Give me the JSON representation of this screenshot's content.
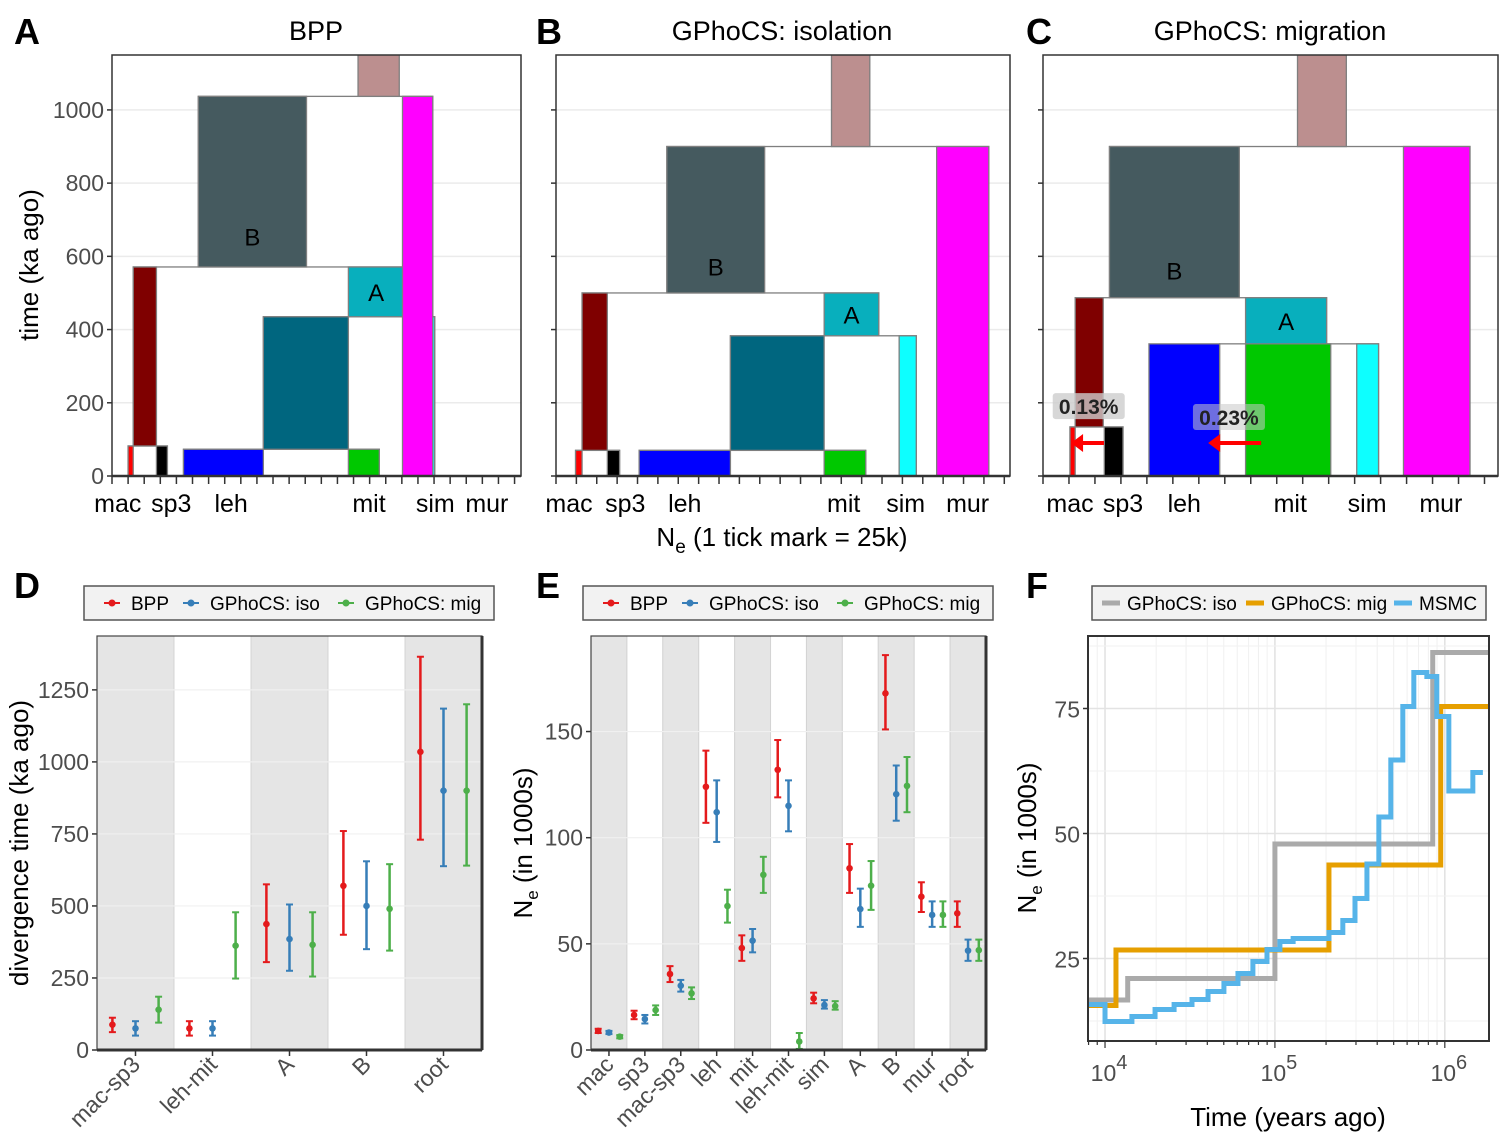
{
  "letters": [
    "A",
    "B",
    "C",
    "D",
    "E",
    "F"
  ],
  "shared_xlabel": {
    "main": "N",
    "sub": "e",
    "rest": " (1 tick mark = 25k)"
  },
  "chart_data": [
    {
      "type": "tree-rectangles",
      "title": "BPP",
      "ylabel": "time (ka ago)",
      "yticks": [
        0,
        200,
        400,
        600,
        800,
        1000
      ],
      "ylim": [
        0,
        1150
      ],
      "xlim": [
        0,
        635
      ],
      "xtick_step": 25,
      "tips": [
        {
          "label": "mac",
          "x": 9
        },
        {
          "label": "sp3",
          "x": 92
        },
        {
          "label": "leh",
          "x": 185
        },
        {
          "label": "mit",
          "x": 399
        },
        {
          "label": "sim",
          "x": 502
        },
        {
          "label": "mur",
          "x": 582
        }
      ],
      "boxes": [
        {
          "name": "B-descendants",
          "x": [
            134,
            498
          ],
          "t": [
            0,
            1037
          ],
          "color": "#FFFFFF"
        },
        {
          "name": "mac-sp3-A-space",
          "x": [
            33,
            453
          ],
          "t": [
            0,
            571
          ],
          "color": "#FFFFFF"
        },
        {
          "name": "A-descendants",
          "x": [
            235,
            501
          ],
          "t": [
            0,
            435
          ],
          "color": "#FFFFFF"
        },
        {
          "name": "leh-mit-tips",
          "x": [
            111,
            415
          ],
          "t": [
            0,
            73
          ],
          "color": "#FFFFFF"
        },
        {
          "name": "mac-sp3-tips",
          "x": [
            25,
            86
          ],
          "t": [
            0,
            82
          ],
          "color": "#FFFFFF"
        },
        {
          "name": "mac",
          "x": [
            25,
            33
          ],
          "t": [
            0,
            82
          ],
          "color": "#FF0000"
        },
        {
          "name": "sp3",
          "x": [
            69,
            86
          ],
          "t": [
            0,
            82
          ],
          "color": "#000000"
        },
        {
          "name": "mac-sp3",
          "x": [
            33,
            69
          ],
          "t": [
            82,
            571
          ],
          "color": "#7F0000"
        },
        {
          "name": "leh",
          "x": [
            111,
            235
          ],
          "t": [
            0,
            73
          ],
          "color": "#0000FF"
        },
        {
          "name": "mit",
          "x": [
            367,
            415
          ],
          "t": [
            0,
            73
          ],
          "color": "#00C800"
        },
        {
          "name": "leh-mit",
          "x": [
            235,
            367
          ],
          "t": [
            73,
            435
          ],
          "color": "#00667F"
        },
        {
          "name": "A",
          "x": [
            367,
            453
          ],
          "t": [
            435,
            571
          ],
          "color": "#08AFBD",
          "label": "A"
        },
        {
          "name": "sim",
          "x": [
            477,
            501
          ],
          "t": [
            0,
            435
          ],
          "color": "#0DFFFF"
        },
        {
          "name": "B",
          "x": [
            134,
            302
          ],
          "t": [
            571,
            1037
          ],
          "color": "#455A5F",
          "label": "B"
        },
        {
          "name": "mur",
          "x": [
            451,
            498
          ],
          "t": [
            0,
            1037
          ],
          "color": "#FF00FF"
        },
        {
          "name": "root",
          "x": [
            382,
            446
          ],
          "t": [
            1037,
            1300
          ],
          "color": "#BC8F8F"
        }
      ]
    },
    {
      "type": "tree-rectangles",
      "title": "GPhoCS: isolation",
      "yticks": [
        0,
        200,
        400,
        600,
        800,
        1000
      ],
      "ylim": [
        0,
        1150
      ],
      "xlim": [
        0,
        557
      ],
      "xtick_step": 25,
      "tips": [
        {
          "label": "mac",
          "x": 16
        },
        {
          "label": "sp3",
          "x": 85
        },
        {
          "label": "leh",
          "x": 158
        },
        {
          "label": "mit",
          "x": 353
        },
        {
          "label": "sim",
          "x": 429
        },
        {
          "label": "mur",
          "x": 505
        }
      ],
      "boxes": [
        {
          "name": "B-descendants",
          "x": [
            136,
            531
          ],
          "t": [
            0,
            900
          ],
          "color": "#FFFFFF"
        },
        {
          "name": "mac-sp3-A-space",
          "x": [
            32,
            396
          ],
          "t": [
            0,
            500
          ],
          "color": "#FFFFFF"
        },
        {
          "name": "A-descendants",
          "x": [
            214,
            442
          ],
          "t": [
            0,
            383
          ],
          "color": "#FFFFFF"
        },
        {
          "name": "leh-mit-tips",
          "x": [
            102,
            380
          ],
          "t": [
            0,
            70
          ],
          "color": "#FFFFFF"
        },
        {
          "name": "mac-sp3-tips",
          "x": [
            24,
            78
          ],
          "t": [
            0,
            70
          ],
          "color": "#FFFFFF"
        },
        {
          "name": "mac",
          "x": [
            24,
            32
          ],
          "t": [
            0,
            70
          ],
          "color": "#FF0000"
        },
        {
          "name": "sp3",
          "x": [
            63,
            78
          ],
          "t": [
            0,
            70
          ],
          "color": "#000000"
        },
        {
          "name": "mac-sp3",
          "x": [
            32,
            63
          ],
          "t": [
            70,
            500
          ],
          "color": "#7F0000"
        },
        {
          "name": "leh",
          "x": [
            102,
            214
          ],
          "t": [
            0,
            70
          ],
          "color": "#0000FF"
        },
        {
          "name": "mit",
          "x": [
            329,
            380
          ],
          "t": [
            0,
            70
          ],
          "color": "#00C800"
        },
        {
          "name": "leh-mit",
          "x": [
            214,
            329
          ],
          "t": [
            70,
            383
          ],
          "color": "#00667F"
        },
        {
          "name": "A",
          "x": [
            329,
            396
          ],
          "t": [
            383,
            500
          ],
          "color": "#08AFBD",
          "label": "A"
        },
        {
          "name": "sim",
          "x": [
            421,
            442
          ],
          "t": [
            0,
            383
          ],
          "color": "#0DFFFF"
        },
        {
          "name": "B",
          "x": [
            136,
            256
          ],
          "t": [
            500,
            900
          ],
          "color": "#455A5F",
          "label": "B"
        },
        {
          "name": "mur",
          "x": [
            467,
            531
          ],
          "t": [
            0,
            900
          ],
          "color": "#FF00FF"
        },
        {
          "name": "root",
          "x": [
            338,
            385
          ],
          "t": [
            900,
            1300
          ],
          "color": "#BC8F8F"
        }
      ]
    },
    {
      "type": "tree-rectangles",
      "title": "GPhoCS: migration",
      "yticks": [
        0,
        200,
        400,
        600,
        800,
        1000
      ],
      "ylim": [
        0,
        1150
      ],
      "xlim": [
        0,
        438
      ],
      "xtick_step": 25,
      "tips": [
        {
          "label": "mac",
          "x": 26
        },
        {
          "label": "sp3",
          "x": 77
        },
        {
          "label": "leh",
          "x": 136
        },
        {
          "label": "mit",
          "x": 238
        },
        {
          "label": "sim",
          "x": 312
        },
        {
          "label": "mur",
          "x": 383
        }
      ],
      "boxes": [
        {
          "name": "B-descendants",
          "x": [
            64,
            411
          ],
          "t": [
            0,
            900
          ],
          "color": "#FFFFFF"
        },
        {
          "name": "mac-sp3-A-space",
          "x": [
            31,
            273
          ],
          "t": [
            0,
            487
          ],
          "color": "#FFFFFF"
        },
        {
          "name": "A-descendants",
          "x": [
            170,
            323
          ],
          "t": [
            0,
            361
          ],
          "color": "#FFFFFF"
        },
        {
          "name": "mac-sp3-tips",
          "x": [
            26,
            77
          ],
          "t": [
            0,
            134
          ],
          "color": "#FFFFFF"
        },
        {
          "name": "mac",
          "x": [
            26,
            31
          ],
          "t": [
            0,
            134
          ],
          "color": "#FF0000"
        },
        {
          "name": "sp3",
          "x": [
            59,
            77
          ],
          "t": [
            0,
            134
          ],
          "color": "#000000"
        },
        {
          "name": "mac-sp3",
          "x": [
            31,
            58
          ],
          "t": [
            134,
            487
          ],
          "color": "#7F0000"
        },
        {
          "name": "leh",
          "x": [
            102,
            170
          ],
          "t": [
            0,
            361
          ],
          "color": "#0000FF"
        },
        {
          "name": "mit",
          "x": [
            195,
            277
          ],
          "t": [
            0,
            361
          ],
          "color": "#00C800"
        },
        {
          "name": "A",
          "x": [
            195,
            273
          ],
          "t": [
            361,
            487
          ],
          "color": "#08AFBD",
          "label": "A"
        },
        {
          "name": "sim",
          "x": [
            302,
            323
          ],
          "t": [
            0,
            361
          ],
          "color": "#0DFFFF"
        },
        {
          "name": "B",
          "x": [
            64,
            189
          ],
          "t": [
            487,
            900
          ],
          "color": "#455A5F",
          "label": "B"
        },
        {
          "name": "mur",
          "x": [
            347,
            411
          ],
          "t": [
            0,
            900
          ],
          "color": "#FF00FF"
        },
        {
          "name": "root",
          "x": [
            245,
            292
          ],
          "t": [
            900,
            1300
          ],
          "color": "#BC8F8F"
        }
      ],
      "migration": [
        {
          "label": "0.13%",
          "from": "sp3",
          "to": "mac",
          "color": "#FF0000"
        },
        {
          "label": "0.23%",
          "from": "mit",
          "to": "leh",
          "color": "#FF0000"
        }
      ]
    },
    {
      "type": "errorbar",
      "ylabel": "divergence time (ka ago)",
      "yticks": [
        0,
        250,
        500,
        750,
        1000,
        1250
      ],
      "ylim": [
        0,
        1437
      ],
      "categories": [
        "mac-sp3",
        "leh-mit",
        "A",
        "B",
        "root"
      ],
      "series": [
        {
          "name": "BPP",
          "color": "#E41A1C",
          "values": [
            88,
            75,
            437,
            570,
            1035
          ],
          "lower": [
            62,
            50,
            305,
            400,
            730
          ],
          "upper": [
            112,
            100,
            575,
            760,
            1365
          ]
        },
        {
          "name": "GPhoCS: iso",
          "color": "#377EB8",
          "values": [
            75,
            75,
            385,
            500,
            900
          ],
          "lower": [
            50,
            50,
            275,
            350,
            638
          ],
          "upper": [
            100,
            100,
            505,
            655,
            1185
          ]
        },
        {
          "name": "GPhoCS: mig",
          "color": "#4DAF4A",
          "values": [
            140,
            362,
            365,
            490,
            900
          ],
          "lower": [
            95,
            248,
            255,
            345,
            640
          ],
          "upper": [
            185,
            478,
            478,
            645,
            1200
          ]
        }
      ],
      "legend": "top"
    },
    {
      "type": "errorbar",
      "ylabel": {
        "main": "N",
        "sub": "e",
        "rest": " (in 1000s)"
      },
      "yticks": [
        0,
        50,
        100,
        150
      ],
      "ylim": [
        0,
        195
      ],
      "categories": [
        "mac",
        "sp3",
        "mac-sp3",
        "leh",
        "mit",
        "leh-mit",
        "sim",
        "A",
        "B",
        "mur",
        "root"
      ],
      "series": [
        {
          "name": "BPP",
          "color": "#E41A1C",
          "values": [
            9,
            16.5,
            35.8,
            124,
            48,
            132,
            24.3,
            85.6,
            168,
            72.2,
            64.4
          ],
          "lower": [
            8,
            14.5,
            32,
            107,
            42,
            119,
            22,
            74,
            151,
            65,
            58
          ],
          "upper": [
            10,
            18.5,
            39.5,
            141,
            54,
            146,
            27,
            97,
            186,
            79,
            70
          ]
        },
        {
          "name": "GPhoCS: iso",
          "color": "#377EB8",
          "values": [
            8.2,
            14.6,
            30.3,
            112,
            51.5,
            115,
            21.2,
            66.4,
            120.5,
            63.6,
            46.8
          ],
          "lower": [
            7.5,
            12.5,
            27.5,
            98,
            46,
            103,
            19.5,
            58,
            108,
            58,
            42
          ],
          "upper": [
            9,
            16.5,
            33,
            127,
            57,
            127,
            23.5,
            76,
            134,
            70,
            52
          ]
        },
        {
          "name": "GPhoCS: mig",
          "color": "#4DAF4A",
          "values": [
            6.3,
            18.8,
            26.7,
            67.8,
            82.5,
            4,
            20.7,
            77.4,
            124.4,
            63.6,
            47
          ],
          "lower": [
            5.5,
            16.5,
            24,
            60,
            74,
            0.5,
            19,
            66,
            112,
            58,
            42
          ],
          "upper": [
            7,
            21,
            29.5,
            75.5,
            91,
            8,
            23,
            89,
            138,
            70,
            52
          ]
        }
      ],
      "legend": "top"
    },
    {
      "type": "line",
      "step": true,
      "xscale": "log",
      "xlabel": "Time (years ago)",
      "ylabel": {
        "main": "N",
        "sub": "e",
        "rest": " (in 1000s)"
      },
      "xlim": [
        7940,
        1820000
      ],
      "ylim": [
        8.5,
        89.5
      ],
      "xtick_base": "10",
      "xtick_exponents": [
        4,
        5,
        6
      ],
      "yticks": [
        25,
        50,
        75
      ],
      "grid": true,
      "legend": "top",
      "series": [
        {
          "name": "GPhoCS: iso",
          "color": "#AAAAAA",
          "x": [
            7940,
            13600,
            100000,
            849000
          ],
          "y": [
            16.7,
            21,
            47.9,
            86.2
          ],
          "x_end": 1820000
        },
        {
          "name": "GPhoCS: mig",
          "color": "#E69F00",
          "x": [
            7940,
            11600,
            208000,
            946000
          ],
          "y": [
            15.6,
            26.7,
            43.7,
            75.4
          ],
          "x_end": 1820000
        },
        {
          "name": "MSMC",
          "color": "#56B4E9",
          "x": [
            7940,
            10000,
            14400,
            19700,
            25500,
            32500,
            40400,
            50100,
            60600,
            74200,
            89800,
            107000,
            128000,
            208000,
            251000,
            296000,
            348000,
            409000,
            481000,
            566000,
            657000,
            784000,
            897000,
            1056000,
            1462000
          ],
          "y": [
            15.8,
            12.4,
            13.4,
            14.8,
            15.8,
            16.8,
            18.4,
            20,
            22,
            24.4,
            26.8,
            28.4,
            29,
            30.2,
            32.6,
            37,
            43.9,
            53.3,
            64.7,
            75.4,
            82.2,
            81.4,
            73.4,
            58.5,
            62.2
          ],
          "x_end": 1675000
        }
      ]
    }
  ]
}
